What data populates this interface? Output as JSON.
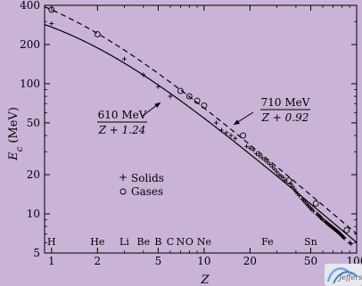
{
  "chart_data": {
    "type": "scatter",
    "title": "",
    "xlabel": "Z",
    "ylabel_main": "E",
    "ylabel_sub": "c",
    "ylabel_unit": " (MeV)",
    "x_scale": "log",
    "y_scale": "log",
    "xlim": [
      0.9,
      100
    ],
    "ylim": [
      5,
      400
    ],
    "x_ticks": [
      {
        "value": 1,
        "label": "1"
      },
      {
        "value": 2,
        "label": "2"
      },
      {
        "value": 5,
        "label": "5"
      },
      {
        "value": 10,
        "label": "10"
      },
      {
        "value": 20,
        "label": "20"
      },
      {
        "value": 50,
        "label": "50"
      },
      {
        "value": 100,
        "label": "100"
      }
    ],
    "y_ticks": [
      {
        "value": 5,
        "label": "5"
      },
      {
        "value": 10,
        "label": "10"
      },
      {
        "value": 20,
        "label": "20"
      },
      {
        "value": 50,
        "label": "50"
      },
      {
        "value": 100,
        "label": "100"
      },
      {
        "value": 200,
        "label": "200"
      },
      {
        "value": 400,
        "label": "400"
      }
    ],
    "element_labels": [
      {
        "z": 1,
        "label": "H"
      },
      {
        "z": 2,
        "label": "He"
      },
      {
        "z": 3,
        "label": "Li"
      },
      {
        "z": 4,
        "label": "Be"
      },
      {
        "z": 5,
        "label": "B"
      },
      {
        "z": 6,
        "label": "C"
      },
      {
        "z": 7,
        "label": "N"
      },
      {
        "z": 8,
        "label": "O"
      },
      {
        "z": 10,
        "label": "Ne"
      },
      {
        "z": 26,
        "label": "Fe"
      },
      {
        "z": 50,
        "label": "Sn"
      }
    ],
    "curves": [
      {
        "id": "solids-fit",
        "numerator": 610,
        "offset": 1.24,
        "style": "solid",
        "label_num": "610 MeV",
        "label_den": "Z + 1.24",
        "label_at": [
          3.6,
          60
        ]
      },
      {
        "id": "gases-fit",
        "numerator": 710,
        "offset": 0.92,
        "style": "dashed",
        "label_num": "710 MeV",
        "label_den": "Z + 0.92",
        "label_at": [
          28,
          72
        ]
      }
    ],
    "series": [
      {
        "name": "Solids",
        "marker": "plus",
        "x": [
          1,
          3,
          4,
          5,
          6,
          12,
          13,
          14,
          15,
          16,
          19,
          20,
          21,
          22,
          23,
          24,
          25,
          26,
          27,
          28,
          29,
          30,
          31,
          32,
          33,
          34,
          37,
          38,
          39,
          40,
          41,
          42,
          44,
          45,
          46,
          47,
          48,
          49,
          50,
          51,
          52,
          55,
          56,
          57,
          58,
          59,
          60,
          62,
          63,
          64,
          65,
          66,
          67,
          68,
          69,
          70,
          71,
          72,
          73,
          74,
          75,
          76,
          77,
          78,
          79,
          80,
          81,
          82,
          83,
          90,
          92
        ],
        "y": [
          290,
          155,
          117,
          95,
          80,
          50,
          44,
          42,
          40,
          38,
          33,
          32,
          31,
          29,
          28,
          27,
          26,
          25,
          24,
          23,
          22,
          21,
          20,
          19.5,
          19,
          18,
          17,
          16.2,
          15.5,
          14.8,
          14.3,
          13.8,
          13,
          12.6,
          12.3,
          11.9,
          11.6,
          11.3,
          11,
          10.8,
          10.5,
          10,
          9.8,
          9.6,
          9.4,
          9.2,
          9,
          8.8,
          8.6,
          8.5,
          8.4,
          8.2,
          8.1,
          8,
          7.9,
          7.8,
          7.7,
          7.6,
          7.5,
          7.4,
          7.3,
          7.2,
          7.1,
          7,
          6.9,
          6.8,
          6.7,
          6.6,
          6.5,
          6,
          5.9
        ]
      },
      {
        "name": "Gases",
        "marker": "circle",
        "x": [
          1,
          2,
          7,
          8,
          9,
          10,
          18,
          36,
          54,
          86
        ],
        "y": [
          370,
          240,
          88,
          80,
          74,
          68,
          40,
          18,
          12,
          7.5
        ]
      }
    ],
    "legend_position": "center-left",
    "grid": false
  }
}
